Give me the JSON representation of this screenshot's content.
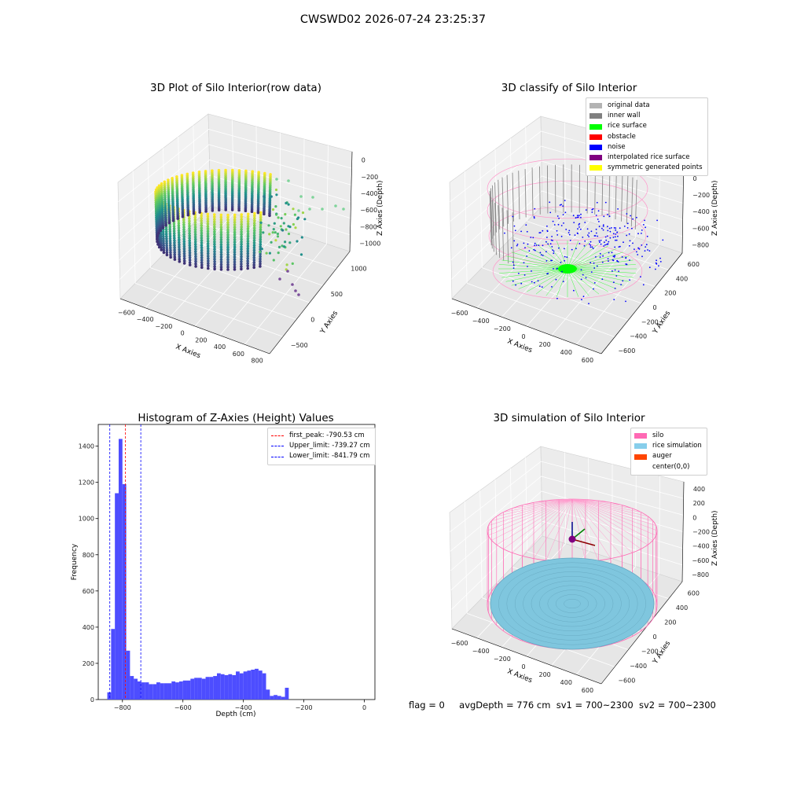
{
  "suptitle": "CWSWD02 2026-07-24 23:25:37",
  "chart_data": [
    {
      "type": "scatter",
      "title": "3D Plot of Silo Interior(row data)",
      "xlabel": "X Axies",
      "ylabel": "Y Axies",
      "zlabel": "Z Axies (Depth)",
      "x_ticks": [
        "−600",
        "−400",
        "−200",
        "0",
        "200",
        "400",
        "600",
        "800"
      ],
      "y_ticks": [
        "−500",
        "0",
        "500",
        "1000"
      ],
      "z_ticks": [
        "0",
        "−200",
        "−400",
        "−600",
        "−800",
        "−1000"
      ],
      "colormap": "viridis"
    },
    {
      "type": "scatter",
      "title": "3D classify of Silo Interior",
      "xlabel": "X Axies",
      "ylabel": "Y Axies",
      "zlabel": "Z Axies (Depth)",
      "x_ticks": [
        "−600",
        "−400",
        "−200",
        "0",
        "200",
        "400",
        "600"
      ],
      "y_ticks": [
        "−600",
        "−400",
        "−200",
        "0",
        "200",
        "400",
        "600"
      ],
      "z_ticks": [
        "200",
        "0",
        "−200",
        "−400",
        "−600",
        "−800"
      ],
      "legend": [
        {
          "label": "original data",
          "color": "#b3b3b3"
        },
        {
          "label": "inner wall",
          "color": "#808080"
        },
        {
          "label": "rice surface",
          "color": "#00ff00"
        },
        {
          "label": "obstacle",
          "color": "#ff0000"
        },
        {
          "label": "noise",
          "color": "#0000ff"
        },
        {
          "label": "interpolated rice surface",
          "color": "#800080"
        },
        {
          "label": "symmetric generated points",
          "color": "#ffff00"
        }
      ]
    },
    {
      "type": "bar",
      "title": "Histogram of Z-Axies (Height) Values",
      "xlabel": "Depth (cm)",
      "ylabel": "Frequency",
      "xlim": [
        -880,
        35
      ],
      "ylim": [
        0,
        1520
      ],
      "x_ticks": [
        -800,
        -600,
        -400,
        -200,
        0
      ],
      "x_tick_labels": [
        "−800",
        "−600",
        "−400",
        "−200",
        "0"
      ],
      "y_ticks": [
        0,
        200,
        400,
        600,
        800,
        1000,
        1200,
        1400
      ],
      "bar_color": "#4d4dff",
      "bin_start": -850,
      "bin_width": 12.5,
      "values": [
        40,
        390,
        1140,
        1440,
        1190,
        270,
        130,
        115,
        100,
        95,
        95,
        85,
        85,
        95,
        90,
        90,
        90,
        100,
        95,
        100,
        105,
        105,
        115,
        120,
        120,
        115,
        125,
        125,
        130,
        145,
        140,
        135,
        140,
        135,
        155,
        145,
        155,
        160,
        165,
        170,
        160,
        145,
        55,
        20,
        25,
        20,
        15,
        65
      ],
      "vlines": [
        {
          "label": "first_peak: -790.53 cm",
          "x": -790.53,
          "color": "#ff0000"
        },
        {
          "label": "Upper_limit: -739.27 cm",
          "x": -739.27,
          "color": "#0000ff"
        },
        {
          "label": "Lower_limit: -841.79 cm",
          "x": -841.79,
          "color": "#0000ff"
        }
      ]
    },
    {
      "type": "scatter",
      "title": "3D simulation of Silo Interior",
      "xlabel": "X Axies",
      "ylabel": "Y Axies",
      "zlabel": "Z Axies (Depth)",
      "x_ticks": [
        "−600",
        "−400",
        "−200",
        "0",
        "200",
        "400",
        "600"
      ],
      "y_ticks": [
        "−600",
        "−400",
        "−200",
        "0",
        "200",
        "400",
        "600"
      ],
      "z_ticks": [
        "400",
        "200",
        "0",
        "−200",
        "−400",
        "−600",
        "−800"
      ],
      "legend": [
        {
          "label": "silo",
          "color": "#ff69b4"
        },
        {
          "label": "rice simulation",
          "color": "#87ceeb"
        },
        {
          "label": "auger",
          "color": "#ff4500"
        },
        {
          "label": "center(0,0)",
          "color": ""
        }
      ]
    }
  ],
  "status": {
    "flag": "flag = 0",
    "avgdepth": "avgDepth = 776 cm",
    "sv1": "sv1 = 700~2300",
    "sv2": "sv2 = 700~2300"
  }
}
